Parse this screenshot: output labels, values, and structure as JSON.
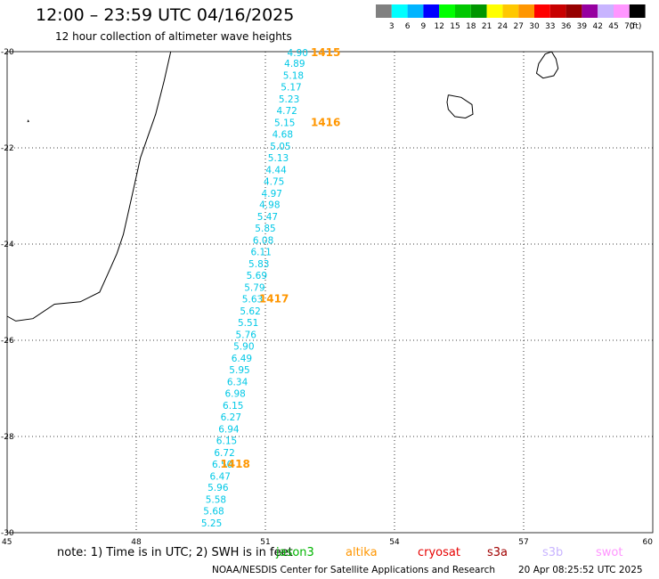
{
  "header": {
    "title": "12:00 – 23:59 UTC 04/16/2025",
    "subtitle": "12 hour collection of altimeter wave heights"
  },
  "colorbar": {
    "colors": [
      "#808080",
      "#00ffff",
      "#00b4ff",
      "#0000ff",
      "#00ff00",
      "#00c800",
      "#009600",
      "#ffff00",
      "#ffc800",
      "#ff9600",
      "#ff0000",
      "#c80000",
      "#960000",
      "#9600a0",
      "#c8b4ff",
      "#ff96ff",
      "#000000"
    ],
    "labels": [
      "3",
      "6",
      "9",
      "12",
      "15",
      "18",
      "21",
      "24",
      "27",
      "30",
      "33",
      "36",
      "39",
      "42",
      "45",
      "70",
      "(ft)"
    ]
  },
  "axes": {
    "lon_min": 45,
    "lon_max": 60,
    "lat_min": -30,
    "lat_max": -20,
    "lon_ticks": [
      "45",
      "48",
      "51",
      "54",
      "57",
      "60"
    ],
    "lat_ticks": [
      "-20",
      "-22",
      "-24",
      "-26",
      "-28",
      "-30"
    ],
    "gridlines": true
  },
  "track": {
    "color": "#00c8e6",
    "points": [
      {
        "lon": 51.75,
        "lat": -20.02,
        "v": "4.90"
      },
      {
        "lon": 51.68,
        "lat": -20.24,
        "v": "4.89"
      },
      {
        "lon": 51.65,
        "lat": -20.49,
        "v": "5.18"
      },
      {
        "lon": 51.6,
        "lat": -20.73,
        "v": "5.17"
      },
      {
        "lon": 51.55,
        "lat": -20.98,
        "v": "5.23"
      },
      {
        "lon": 51.5,
        "lat": -21.22,
        "v": "4.72"
      },
      {
        "lon": 51.45,
        "lat": -21.47,
        "v": "5.15"
      },
      {
        "lon": 51.4,
        "lat": -21.71,
        "v": "4.68"
      },
      {
        "lon": 51.35,
        "lat": -21.96,
        "v": "5.05"
      },
      {
        "lon": 51.3,
        "lat": -22.2,
        "v": "5.13"
      },
      {
        "lon": 51.25,
        "lat": -22.45,
        "v": "4.44"
      },
      {
        "lon": 51.2,
        "lat": -22.69,
        "v": "4.75"
      },
      {
        "lon": 51.15,
        "lat": -22.94,
        "v": "4.97"
      },
      {
        "lon": 51.1,
        "lat": -23.18,
        "v": "4.98"
      },
      {
        "lon": 51.05,
        "lat": -23.43,
        "v": "5.47"
      },
      {
        "lon": 51.0,
        "lat": -23.67,
        "v": "5.85"
      },
      {
        "lon": 50.95,
        "lat": -23.92,
        "v": "6.08"
      },
      {
        "lon": 50.9,
        "lat": -24.16,
        "v": "6.11"
      },
      {
        "lon": 50.85,
        "lat": -24.41,
        "v": "5.83"
      },
      {
        "lon": 50.8,
        "lat": -24.65,
        "v": "5.69"
      },
      {
        "lon": 50.75,
        "lat": -24.9,
        "v": "5.79"
      },
      {
        "lon": 50.7,
        "lat": -25.14,
        "v": "5.63"
      },
      {
        "lon": 50.65,
        "lat": -25.39,
        "v": "5.62"
      },
      {
        "lon": 50.6,
        "lat": -25.63,
        "v": "5.51"
      },
      {
        "lon": 50.55,
        "lat": -25.88,
        "v": "5.76"
      },
      {
        "lon": 50.5,
        "lat": -26.12,
        "v": "5.90"
      },
      {
        "lon": 50.45,
        "lat": -26.37,
        "v": "6.49"
      },
      {
        "lon": 50.4,
        "lat": -26.61,
        "v": "5.95"
      },
      {
        "lon": 50.35,
        "lat": -26.86,
        "v": "6.34"
      },
      {
        "lon": 50.3,
        "lat": -27.1,
        "v": "6.98"
      },
      {
        "lon": 50.25,
        "lat": -27.35,
        "v": "6.15"
      },
      {
        "lon": 50.2,
        "lat": -27.59,
        "v": "6.27"
      },
      {
        "lon": 50.15,
        "lat": -27.84,
        "v": "6.94"
      },
      {
        "lon": 50.1,
        "lat": -28.08,
        "v": "6.15"
      },
      {
        "lon": 50.05,
        "lat": -28.33,
        "v": "6.72"
      },
      {
        "lon": 50.0,
        "lat": -28.57,
        "v": "6.50"
      },
      {
        "lon": 49.95,
        "lat": -28.82,
        "v": "6.47"
      },
      {
        "lon": 49.9,
        "lat": -29.06,
        "v": "5.96"
      },
      {
        "lon": 49.85,
        "lat": -29.31,
        "v": "5.58"
      },
      {
        "lon": 49.8,
        "lat": -29.55,
        "v": "5.68"
      },
      {
        "lon": 49.75,
        "lat": -29.8,
        "v": "5.25"
      }
    ]
  },
  "time_labels": {
    "color": "#ff9600",
    "items": [
      {
        "lon": 52.4,
        "lat": -20.02,
        "text": "1415"
      },
      {
        "lon": 52.4,
        "lat": -21.47,
        "text": "1416"
      },
      {
        "lon": 51.2,
        "lat": -25.14,
        "text": "1417"
      },
      {
        "lon": 50.3,
        "lat": -28.57,
        "text": "1418"
      }
    ]
  },
  "coastlines": {
    "madagascar": [
      [
        48.8,
        -20.0
      ],
      [
        48.65,
        -20.6
      ],
      [
        48.45,
        -21.3
      ],
      [
        48.1,
        -22.2
      ],
      [
        47.9,
        -23.0
      ],
      [
        47.7,
        -23.8
      ],
      [
        47.55,
        -24.2
      ],
      [
        47.35,
        -24.6
      ],
      [
        47.15,
        -25.0
      ],
      [
        46.7,
        -25.2
      ],
      [
        46.1,
        -25.25
      ],
      [
        45.6,
        -25.55
      ],
      [
        45.2,
        -25.6
      ],
      [
        45.0,
        -25.5
      ]
    ],
    "reunion": [
      [
        55.25,
        -20.9
      ],
      [
        55.55,
        -20.95
      ],
      [
        55.8,
        -21.1
      ],
      [
        55.82,
        -21.3
      ],
      [
        55.65,
        -21.38
      ],
      [
        55.4,
        -21.35
      ],
      [
        55.25,
        -21.2
      ],
      [
        55.22,
        -21.05
      ],
      [
        55.25,
        -20.9
      ]
    ],
    "mauritius": [
      [
        57.65,
        -20.0
      ],
      [
        57.75,
        -20.15
      ],
      [
        57.8,
        -20.35
      ],
      [
        57.7,
        -20.5
      ],
      [
        57.45,
        -20.55
      ],
      [
        57.3,
        -20.45
      ],
      [
        57.35,
        -20.25
      ],
      [
        57.5,
        -20.05
      ],
      [
        57.65,
        -20.0
      ]
    ],
    "islet": [
      [
        45.48,
        -21.42
      ],
      [
        45.5,
        -21.45
      ],
      [
        45.47,
        -21.46
      ]
    ]
  },
  "footer": {
    "note": "note: 1) Time is in UTC; 2) SWH is in feet",
    "satellites": [
      {
        "name": "jason3",
        "color": "#00b400"
      },
      {
        "name": "altika",
        "color": "#ff9600"
      },
      {
        "name": "cryosat",
        "color": "#e60000"
      },
      {
        "name": "s3a",
        "color": "#a00000"
      },
      {
        "name": "s3b",
        "color": "#c8b4ff"
      },
      {
        "name": "swot",
        "color": "#ff96ff"
      }
    ],
    "credit": "NOAA/NESDIS Center for Satellite Applications and Research",
    "timestamp": "20 Apr 08:25:52 UTC 2025"
  }
}
